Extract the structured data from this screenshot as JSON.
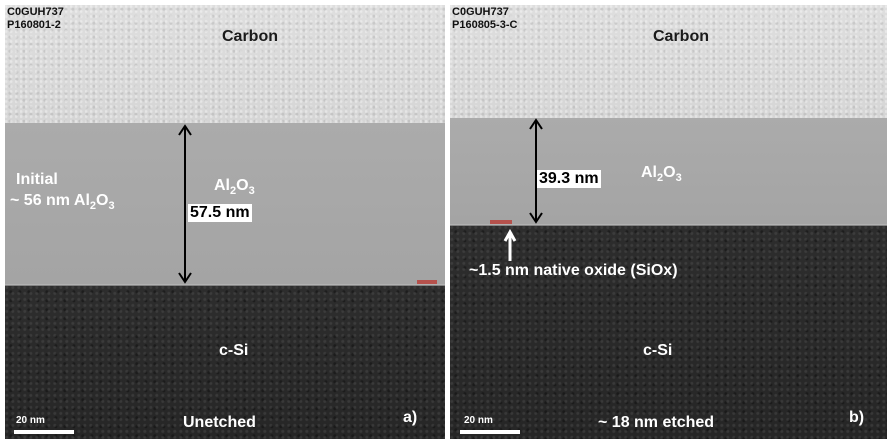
{
  "panel_a": {
    "sample_id": "C0GUH737",
    "sample_code": "P160801-2",
    "carbon": "Carbon",
    "initial_line1": "Initial",
    "initial_line2_prefix": "~ 56 nm Al",
    "sub_2": "2",
    "o": "O",
    "sub_3": "3",
    "al": "Al",
    "thickness": "57.5 nm",
    "substrate": "c-Si",
    "caption": "Unetched",
    "scale": "20 nm",
    "tag": "a)"
  },
  "panel_b": {
    "sample_id": "C0GUH737",
    "sample_code": "P160805-3-C",
    "carbon": "Carbon",
    "al": "Al",
    "sub_2": "2",
    "o": "O",
    "sub_3": "3",
    "thickness": "39.3 nm",
    "oxide_note": "~1.5 nm native oxide (SiOx)",
    "substrate": "c-Si",
    "caption": "~ 18 nm etched",
    "scale": "20 nm",
    "tag": "b)"
  },
  "colors": {
    "oxide_marker": "#b5514c",
    "carbon_layer": "#d9d9d9",
    "al2o3_layer": "#a8a8a8",
    "silicon_layer": "#2a2a2a"
  }
}
